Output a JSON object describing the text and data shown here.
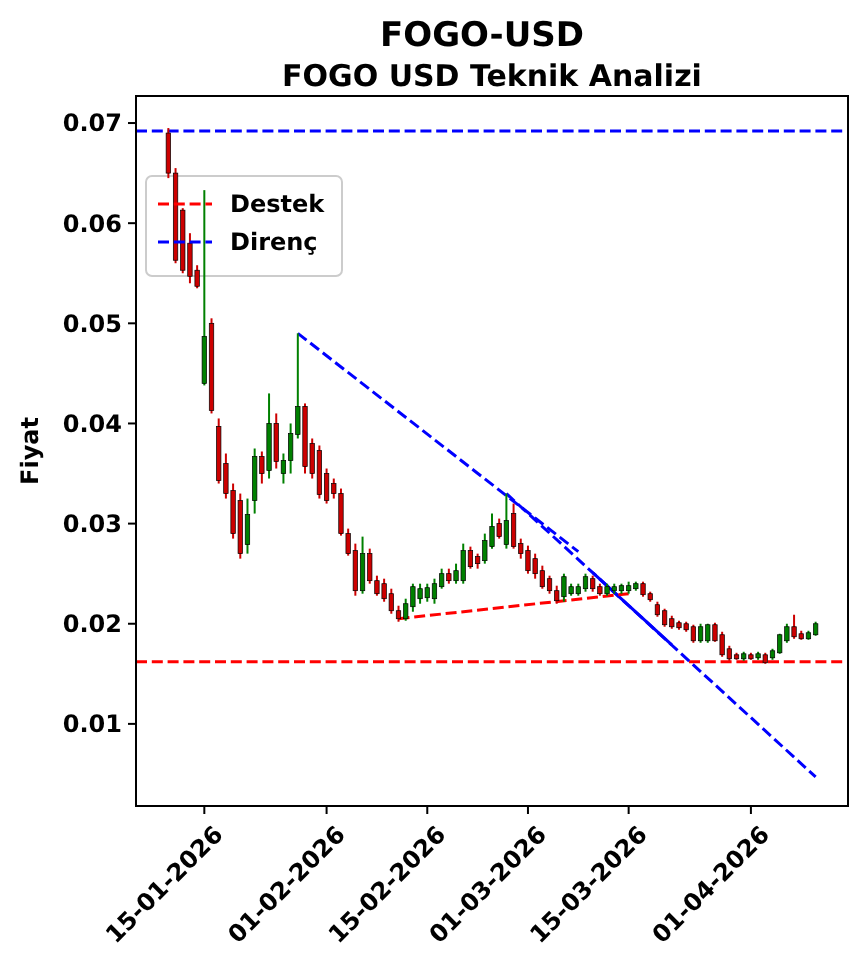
{
  "chart_data": {
    "type": "candlestick",
    "title": "FOGO-USD",
    "subtitle": "FOGO USD Teknik Analizi",
    "ylabel": "Fiyat",
    "x": [
      "2026-01-10",
      "2026-01-11",
      "2026-01-12",
      "2026-01-13",
      "2026-01-14",
      "2026-01-15",
      "2026-01-16",
      "2026-01-17",
      "2026-01-18",
      "2026-01-19",
      "2026-01-20",
      "2026-01-21",
      "2026-01-22",
      "2026-01-23",
      "2026-01-24",
      "2026-01-25",
      "2026-01-26",
      "2026-01-27",
      "2026-01-28",
      "2026-01-29",
      "2026-01-30",
      "2026-01-31",
      "2026-02-01",
      "2026-02-02",
      "2026-02-03",
      "2026-02-04",
      "2026-02-05",
      "2026-02-06",
      "2026-02-07",
      "2026-02-08",
      "2026-02-09",
      "2026-02-10",
      "2026-02-11",
      "2026-02-12",
      "2026-02-13",
      "2026-02-14",
      "2026-02-15",
      "2026-02-16",
      "2026-02-17",
      "2026-02-18",
      "2026-02-19",
      "2026-02-20",
      "2026-02-21",
      "2026-02-22",
      "2026-02-23",
      "2026-02-24",
      "2026-02-25",
      "2026-02-26",
      "2026-02-27",
      "2026-02-28",
      "2026-03-01",
      "2026-03-02",
      "2026-03-03",
      "2026-03-04",
      "2026-03-05",
      "2026-03-06",
      "2026-03-07",
      "2026-03-08",
      "2026-03-09",
      "2026-03-10",
      "2026-03-11",
      "2026-03-12",
      "2026-03-13",
      "2026-03-14",
      "2026-03-15",
      "2026-03-16",
      "2026-03-17",
      "2026-03-18",
      "2026-03-19",
      "2026-03-20",
      "2026-03-21",
      "2026-03-22",
      "2026-03-23",
      "2026-03-24",
      "2026-03-25",
      "2026-03-26",
      "2026-03-27",
      "2026-03-28",
      "2026-03-29",
      "2026-03-30",
      "2026-03-31",
      "2026-04-01",
      "2026-04-02",
      "2026-04-03",
      "2026-04-04",
      "2026-04-05",
      "2026-04-06",
      "2026-04-07",
      "2026-04-08",
      "2026-04-09",
      "2026-04-10"
    ],
    "ohlc": [
      [
        0.069,
        0.0695,
        0.0645,
        0.065
      ],
      [
        0.065,
        0.0655,
        0.056,
        0.0563
      ],
      [
        0.0613,
        0.0615,
        0.055,
        0.0553
      ],
      [
        0.058,
        0.059,
        0.054,
        0.0547
      ],
      [
        0.0553,
        0.0558,
        0.0535,
        0.0537
      ],
      [
        0.044,
        0.0633,
        0.0438,
        0.0487
      ],
      [
        0.05,
        0.0505,
        0.041,
        0.0413
      ],
      [
        0.0397,
        0.0405,
        0.034,
        0.0343
      ],
      [
        0.036,
        0.037,
        0.0325,
        0.033
      ],
      [
        0.0333,
        0.034,
        0.0285,
        0.029
      ],
      [
        0.0323,
        0.033,
        0.0265,
        0.027
      ],
      [
        0.0279,
        0.0325,
        0.027,
        0.0309
      ],
      [
        0.0323,
        0.0375,
        0.031,
        0.0367
      ],
      [
        0.0367,
        0.0372,
        0.034,
        0.035
      ],
      [
        0.0353,
        0.043,
        0.0345,
        0.04
      ],
      [
        0.04,
        0.041,
        0.0355,
        0.0362
      ],
      [
        0.035,
        0.037,
        0.034,
        0.0363
      ],
      [
        0.0363,
        0.04,
        0.035,
        0.039
      ],
      [
        0.0389,
        0.049,
        0.0385,
        0.0417
      ],
      [
        0.0417,
        0.042,
        0.035,
        0.0357
      ],
      [
        0.038,
        0.0385,
        0.0345,
        0.035
      ],
      [
        0.0373,
        0.0378,
        0.0325,
        0.0329
      ],
      [
        0.035,
        0.0355,
        0.032,
        0.0323
      ],
      [
        0.034,
        0.0345,
        0.0325,
        0.033
      ],
      [
        0.033,
        0.0335,
        0.0288,
        0.029
      ],
      [
        0.029,
        0.0295,
        0.0268,
        0.027
      ],
      [
        0.0273,
        0.028,
        0.0228,
        0.0233
      ],
      [
        0.0233,
        0.0287,
        0.023,
        0.027
      ],
      [
        0.027,
        0.0275,
        0.024,
        0.0243
      ],
      [
        0.0243,
        0.0248,
        0.0228,
        0.023
      ],
      [
        0.024,
        0.0245,
        0.0222,
        0.0225
      ],
      [
        0.023,
        0.0235,
        0.021,
        0.0213
      ],
      [
        0.0213,
        0.0218,
        0.0202,
        0.0205
      ],
      [
        0.0205,
        0.0225,
        0.0203,
        0.022
      ],
      [
        0.0217,
        0.024,
        0.0212,
        0.0237
      ],
      [
        0.0225,
        0.024,
        0.022,
        0.0235
      ],
      [
        0.0226,
        0.024,
        0.0222,
        0.0236
      ],
      [
        0.0225,
        0.0245,
        0.022,
        0.024
      ],
      [
        0.0237,
        0.0255,
        0.0235,
        0.025
      ],
      [
        0.025,
        0.0255,
        0.024,
        0.0243
      ],
      [
        0.0243,
        0.026,
        0.024,
        0.0253
      ],
      [
        0.0243,
        0.028,
        0.024,
        0.0273
      ],
      [
        0.0273,
        0.0277,
        0.0255,
        0.0257
      ],
      [
        0.0267,
        0.027,
        0.0255,
        0.026
      ],
      [
        0.0263,
        0.029,
        0.026,
        0.0283
      ],
      [
        0.0277,
        0.031,
        0.0275,
        0.0297
      ],
      [
        0.03,
        0.0305,
        0.0285,
        0.0287
      ],
      [
        0.0279,
        0.033,
        0.0275,
        0.0303
      ],
      [
        0.031,
        0.032,
        0.0275,
        0.0277
      ],
      [
        0.028,
        0.0285,
        0.0265,
        0.027
      ],
      [
        0.0273,
        0.0278,
        0.025,
        0.0253
      ],
      [
        0.0265,
        0.027,
        0.0245,
        0.025
      ],
      [
        0.0253,
        0.0258,
        0.0235,
        0.0237
      ],
      [
        0.0245,
        0.0248,
        0.023,
        0.0233
      ],
      [
        0.0233,
        0.0238,
        0.022,
        0.0223
      ],
      [
        0.0227,
        0.025,
        0.0222,
        0.0247
      ],
      [
        0.023,
        0.024,
        0.0228,
        0.0237
      ],
      [
        0.023,
        0.024,
        0.0228,
        0.0237
      ],
      [
        0.0235,
        0.025,
        0.0232,
        0.0247
      ],
      [
        0.0245,
        0.0248,
        0.0232,
        0.0235
      ],
      [
        0.0237,
        0.024,
        0.0228,
        0.023
      ],
      [
        0.023,
        0.024,
        0.0228,
        0.0237
      ],
      [
        0.0233,
        0.024,
        0.023,
        0.0237
      ],
      [
        0.0233,
        0.024,
        0.023,
        0.0238
      ],
      [
        0.0233,
        0.0242,
        0.023,
        0.0238
      ],
      [
        0.0235,
        0.0242,
        0.0233,
        0.024
      ],
      [
        0.024,
        0.0242,
        0.0227,
        0.0229
      ],
      [
        0.023,
        0.0232,
        0.0222,
        0.0224
      ],
      [
        0.0219,
        0.0222,
        0.0207,
        0.0209
      ],
      [
        0.0213,
        0.0215,
        0.0197,
        0.0199
      ],
      [
        0.0205,
        0.0208,
        0.0195,
        0.0197
      ],
      [
        0.0201,
        0.0203,
        0.0194,
        0.0196
      ],
      [
        0.02,
        0.0202,
        0.0192,
        0.0194
      ],
      [
        0.0197,
        0.0199,
        0.0181,
        0.0183
      ],
      [
        0.0183,
        0.02,
        0.0181,
        0.0197
      ],
      [
        0.0183,
        0.02,
        0.0181,
        0.0199
      ],
      [
        0.0199,
        0.0201,
        0.0182,
        0.0183
      ],
      [
        0.0189,
        0.0192,
        0.0167,
        0.0169
      ],
      [
        0.0175,
        0.0178,
        0.0163,
        0.0165
      ],
      [
        0.0169,
        0.0171,
        0.0164,
        0.0165
      ],
      [
        0.0165,
        0.0172,
        0.0163,
        0.017
      ],
      [
        0.0169,
        0.0171,
        0.0164,
        0.0165
      ],
      [
        0.0166,
        0.0172,
        0.0164,
        0.017
      ],
      [
        0.0169,
        0.0171,
        0.016,
        0.0161
      ],
      [
        0.0166,
        0.0175,
        0.0164,
        0.0173
      ],
      [
        0.0171,
        0.019,
        0.017,
        0.0189
      ],
      [
        0.0183,
        0.02,
        0.0181,
        0.0197
      ],
      [
        0.0197,
        0.0209,
        0.0185,
        0.0187
      ],
      [
        0.019,
        0.0193,
        0.0184,
        0.0185
      ],
      [
        0.0185,
        0.0193,
        0.0184,
        0.0191
      ],
      [
        0.0189,
        0.0202,
        0.0188,
        0.02
      ]
    ],
    "colors": [
      "#cc0000",
      "#cc0000",
      "#cc0000",
      "#cc0000",
      "#cc0000",
      "#008000",
      "#cc0000",
      "#cc0000",
      "#cc0000",
      "#cc0000",
      "#cc0000",
      "#008000",
      "#008000",
      "#cc0000",
      "#008000",
      "#cc0000",
      "#008000",
      "#008000",
      "#008000",
      "#cc0000",
      "#cc0000",
      "#cc0000",
      "#cc0000",
      "#cc0000",
      "#cc0000",
      "#cc0000",
      "#cc0000",
      "#008000",
      "#cc0000",
      "#cc0000",
      "#cc0000",
      "#cc0000",
      "#cc0000",
      "#008000",
      "#008000",
      "#008000",
      "#008000",
      "#008000",
      "#008000",
      "#cc0000",
      "#008000",
      "#008000",
      "#cc0000",
      "#cc0000",
      "#008000",
      "#008000",
      "#cc0000",
      "#008000",
      "#cc0000",
      "#cc0000",
      "#cc0000",
      "#cc0000",
      "#cc0000",
      "#cc0000",
      "#cc0000",
      "#008000",
      "#008000",
      "#008000",
      "#008000",
      "#cc0000",
      "#cc0000",
      "#008000",
      "#008000",
      "#008000",
      "#008000",
      "#008000",
      "#cc0000",
      "#cc0000",
      "#cc0000",
      "#cc0000",
      "#cc0000",
      "#cc0000",
      "#cc0000",
      "#cc0000",
      "#008000",
      "#008000",
      "#cc0000",
      "#cc0000",
      "#cc0000",
      "#cc0000",
      "#008000",
      "#cc0000",
      "#008000",
      "#cc0000",
      "#008000",
      "#008000",
      "#008000",
      "#cc0000",
      "#cc0000",
      "#008000",
      "#008000"
    ],
    "series": [
      {
        "type": "line",
        "x": [
          "2026-01-28",
          "2026-03-08"
        ],
        "values": [
          0.049,
          0.0272
        ],
        "color": "#0000ff",
        "line_style": "dashed"
      },
      {
        "type": "line",
        "x": [
          "2026-02-26",
          "2026-04-10"
        ],
        "values": [
          0.033,
          0.0047
        ],
        "color": "#0000ff",
        "line_style": "dashed"
      },
      {
        "type": "line",
        "x": [
          "2026-03-10",
          "2026-03-21"
        ],
        "values": [
          0.0251,
          0.0179
        ],
        "color": "#0000ff",
        "line_style": "solid"
      },
      {
        "type": "line",
        "x": [
          "2026-02-11",
          "2026-03-15"
        ],
        "values": [
          0.0205,
          0.023
        ],
        "color": "#ff0000",
        "line_style": "dashed"
      }
    ],
    "ref_lines": [
      {
        "axis": "y",
        "value": 0.0162,
        "label": "Destek",
        "color": "#ff0000",
        "line_style": "dashed"
      },
      {
        "axis": "y",
        "value": 0.0692,
        "label": "Direnç",
        "color": "#0000ff",
        "line_style": "dashed"
      }
    ],
    "xlim": [
      "2026-01-05T12:00",
      "2026-04-14T12:00"
    ],
    "xticks": [
      {
        "value": "2026-01-15",
        "label": "15-01-2026"
      },
      {
        "value": "2026-02-01",
        "label": "01-02-2026"
      },
      {
        "value": "2026-02-15",
        "label": "15-02-2026"
      },
      {
        "value": "2026-03-01",
        "label": "01-03-2026"
      },
      {
        "value": "2026-03-15",
        "label": "15-03-2026"
      },
      {
        "value": "2026-04-01",
        "label": "01-04-2026"
      }
    ],
    "ylim": [
      0.0018,
      0.0727
    ],
    "yticks": [
      0.01,
      0.02,
      0.03,
      0.04,
      0.05,
      0.06,
      0.07
    ],
    "legend": "top left"
  }
}
